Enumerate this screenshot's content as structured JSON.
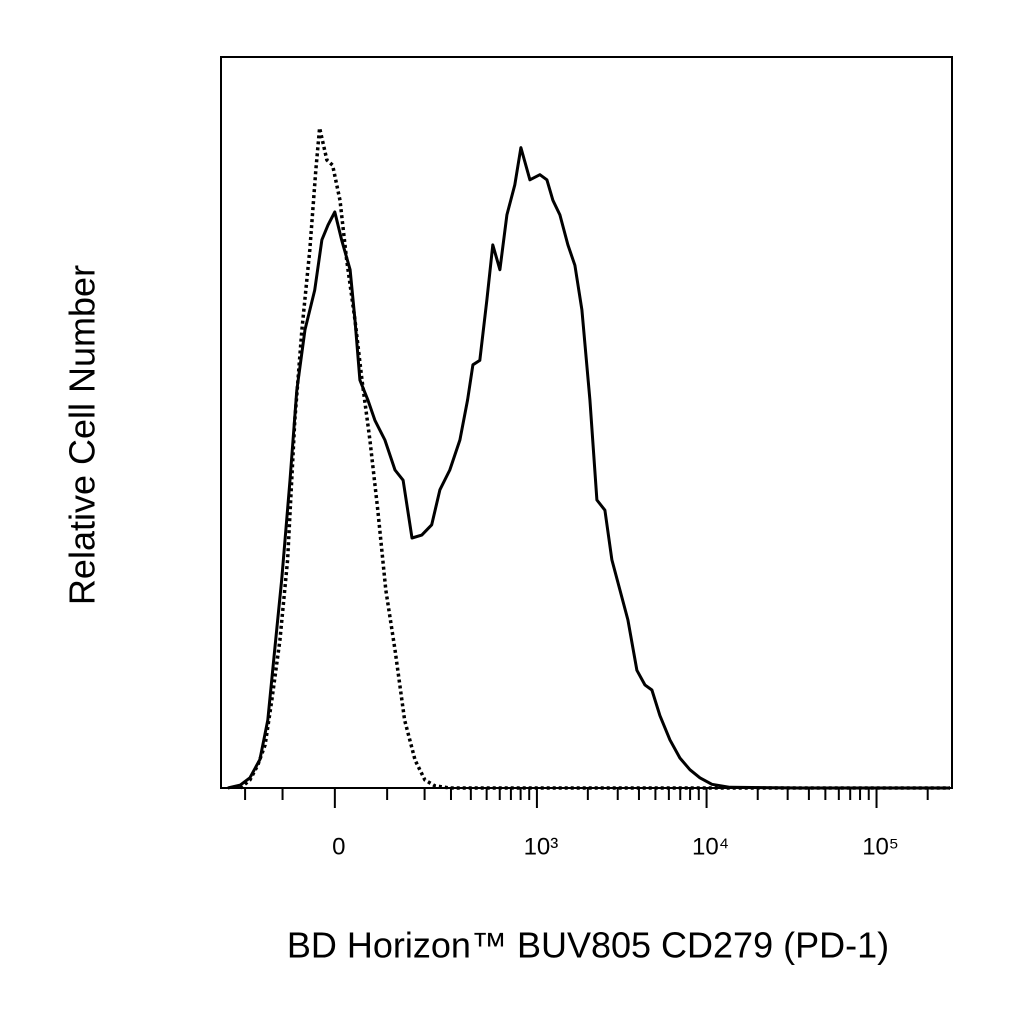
{
  "chart_data": {
    "type": "line",
    "x_label": "BD Horizon™ BUV805 CD279 (PD-1)",
    "y_label": "Relative Cell Number",
    "xscale": {
      "type": "asinh",
      "linear_width": 130
    },
    "xlim": [
      -290,
      278000
    ],
    "ylim": [
      0,
      100
    ],
    "xticks": [
      0,
      {
        "value": 1000,
        "label": "10³"
      },
      {
        "value": 10000,
        "label": "10⁴"
      },
      {
        "value": 100000,
        "label": "10⁵"
      }
    ],
    "xminorticks": [
      -200,
      -100,
      100,
      200,
      300,
      400,
      500,
      600,
      700,
      800,
      900,
      2000,
      3000,
      4000,
      5000,
      6000,
      7000,
      8000,
      9000,
      20000,
      30000,
      40000,
      50000,
      60000,
      70000,
      80000,
      90000,
      200000
    ],
    "series": [
      {
        "color": "#000000",
        "linestyle": "solid",
        "x": [
          -262,
          -216,
          -185,
          -156,
          -135,
          -118,
          -102,
          -84,
          -70,
          -54,
          -36,
          -23,
          -12,
          0,
          12,
          27,
          36,
          45,
          60,
          74,
          95,
          118,
          138,
          162,
          191,
          224,
          254,
          295,
          342,
          382,
          412,
          454,
          502,
          545,
          601,
          662,
          739,
          803,
          909,
          1041,
          1146,
          1244,
          1368,
          1525,
          1677,
          1845,
          2056,
          2262,
          2522,
          2772,
          3090,
          3444,
          3891,
          4338,
          4767,
          5316,
          6084,
          6968,
          7982,
          9139,
          10751,
          13715,
          35451,
          270400
        ],
        "values": [
          0,
          0.4,
          1.4,
          3.9,
          9.3,
          18.9,
          28.5,
          42.1,
          54.4,
          62.7,
          68.1,
          75.0,
          77.0,
          78.8,
          75.0,
          70.9,
          64.0,
          55.8,
          53.1,
          50.3,
          47.6,
          43.5,
          42.1,
          34.2,
          34.6,
          36.0,
          40.8,
          43.5,
          47.6,
          53.1,
          57.9,
          58.5,
          66.8,
          74.3,
          70.9,
          78.4,
          82.5,
          87.6,
          83.2,
          83.9,
          83.2,
          80.4,
          78.4,
          74.3,
          71.5,
          65.4,
          53.1,
          39.4,
          38.0,
          31.2,
          27.1,
          23.0,
          16.1,
          14.1,
          13.4,
          9.9,
          6.6,
          4.1,
          2.5,
          1.4,
          0.5,
          0.1,
          0,
          0
        ]
      },
      {
        "color": "#000000",
        "linestyle": "dotted",
        "x": [
          -216,
          -185,
          -162,
          -142,
          -125,
          -106,
          -89,
          -74,
          -60,
          -45,
          -34,
          -27,
          -14,
          -4,
          9,
          21,
          36,
          49,
          64,
          80,
          97,
          118,
          142,
          171,
          201,
          235,
          295,
          270400
        ],
        "values": [
          0,
          1.1,
          3.1,
          5.9,
          12.0,
          20.2,
          31.2,
          50.3,
          62.7,
          73.6,
          84.5,
          90.3,
          85.9,
          85.2,
          80.4,
          72.2,
          64.0,
          55.8,
          47.6,
          38.0,
          27.1,
          18.9,
          9.3,
          3.8,
          1.1,
          0.3,
          0,
          0
        ]
      }
    ]
  }
}
